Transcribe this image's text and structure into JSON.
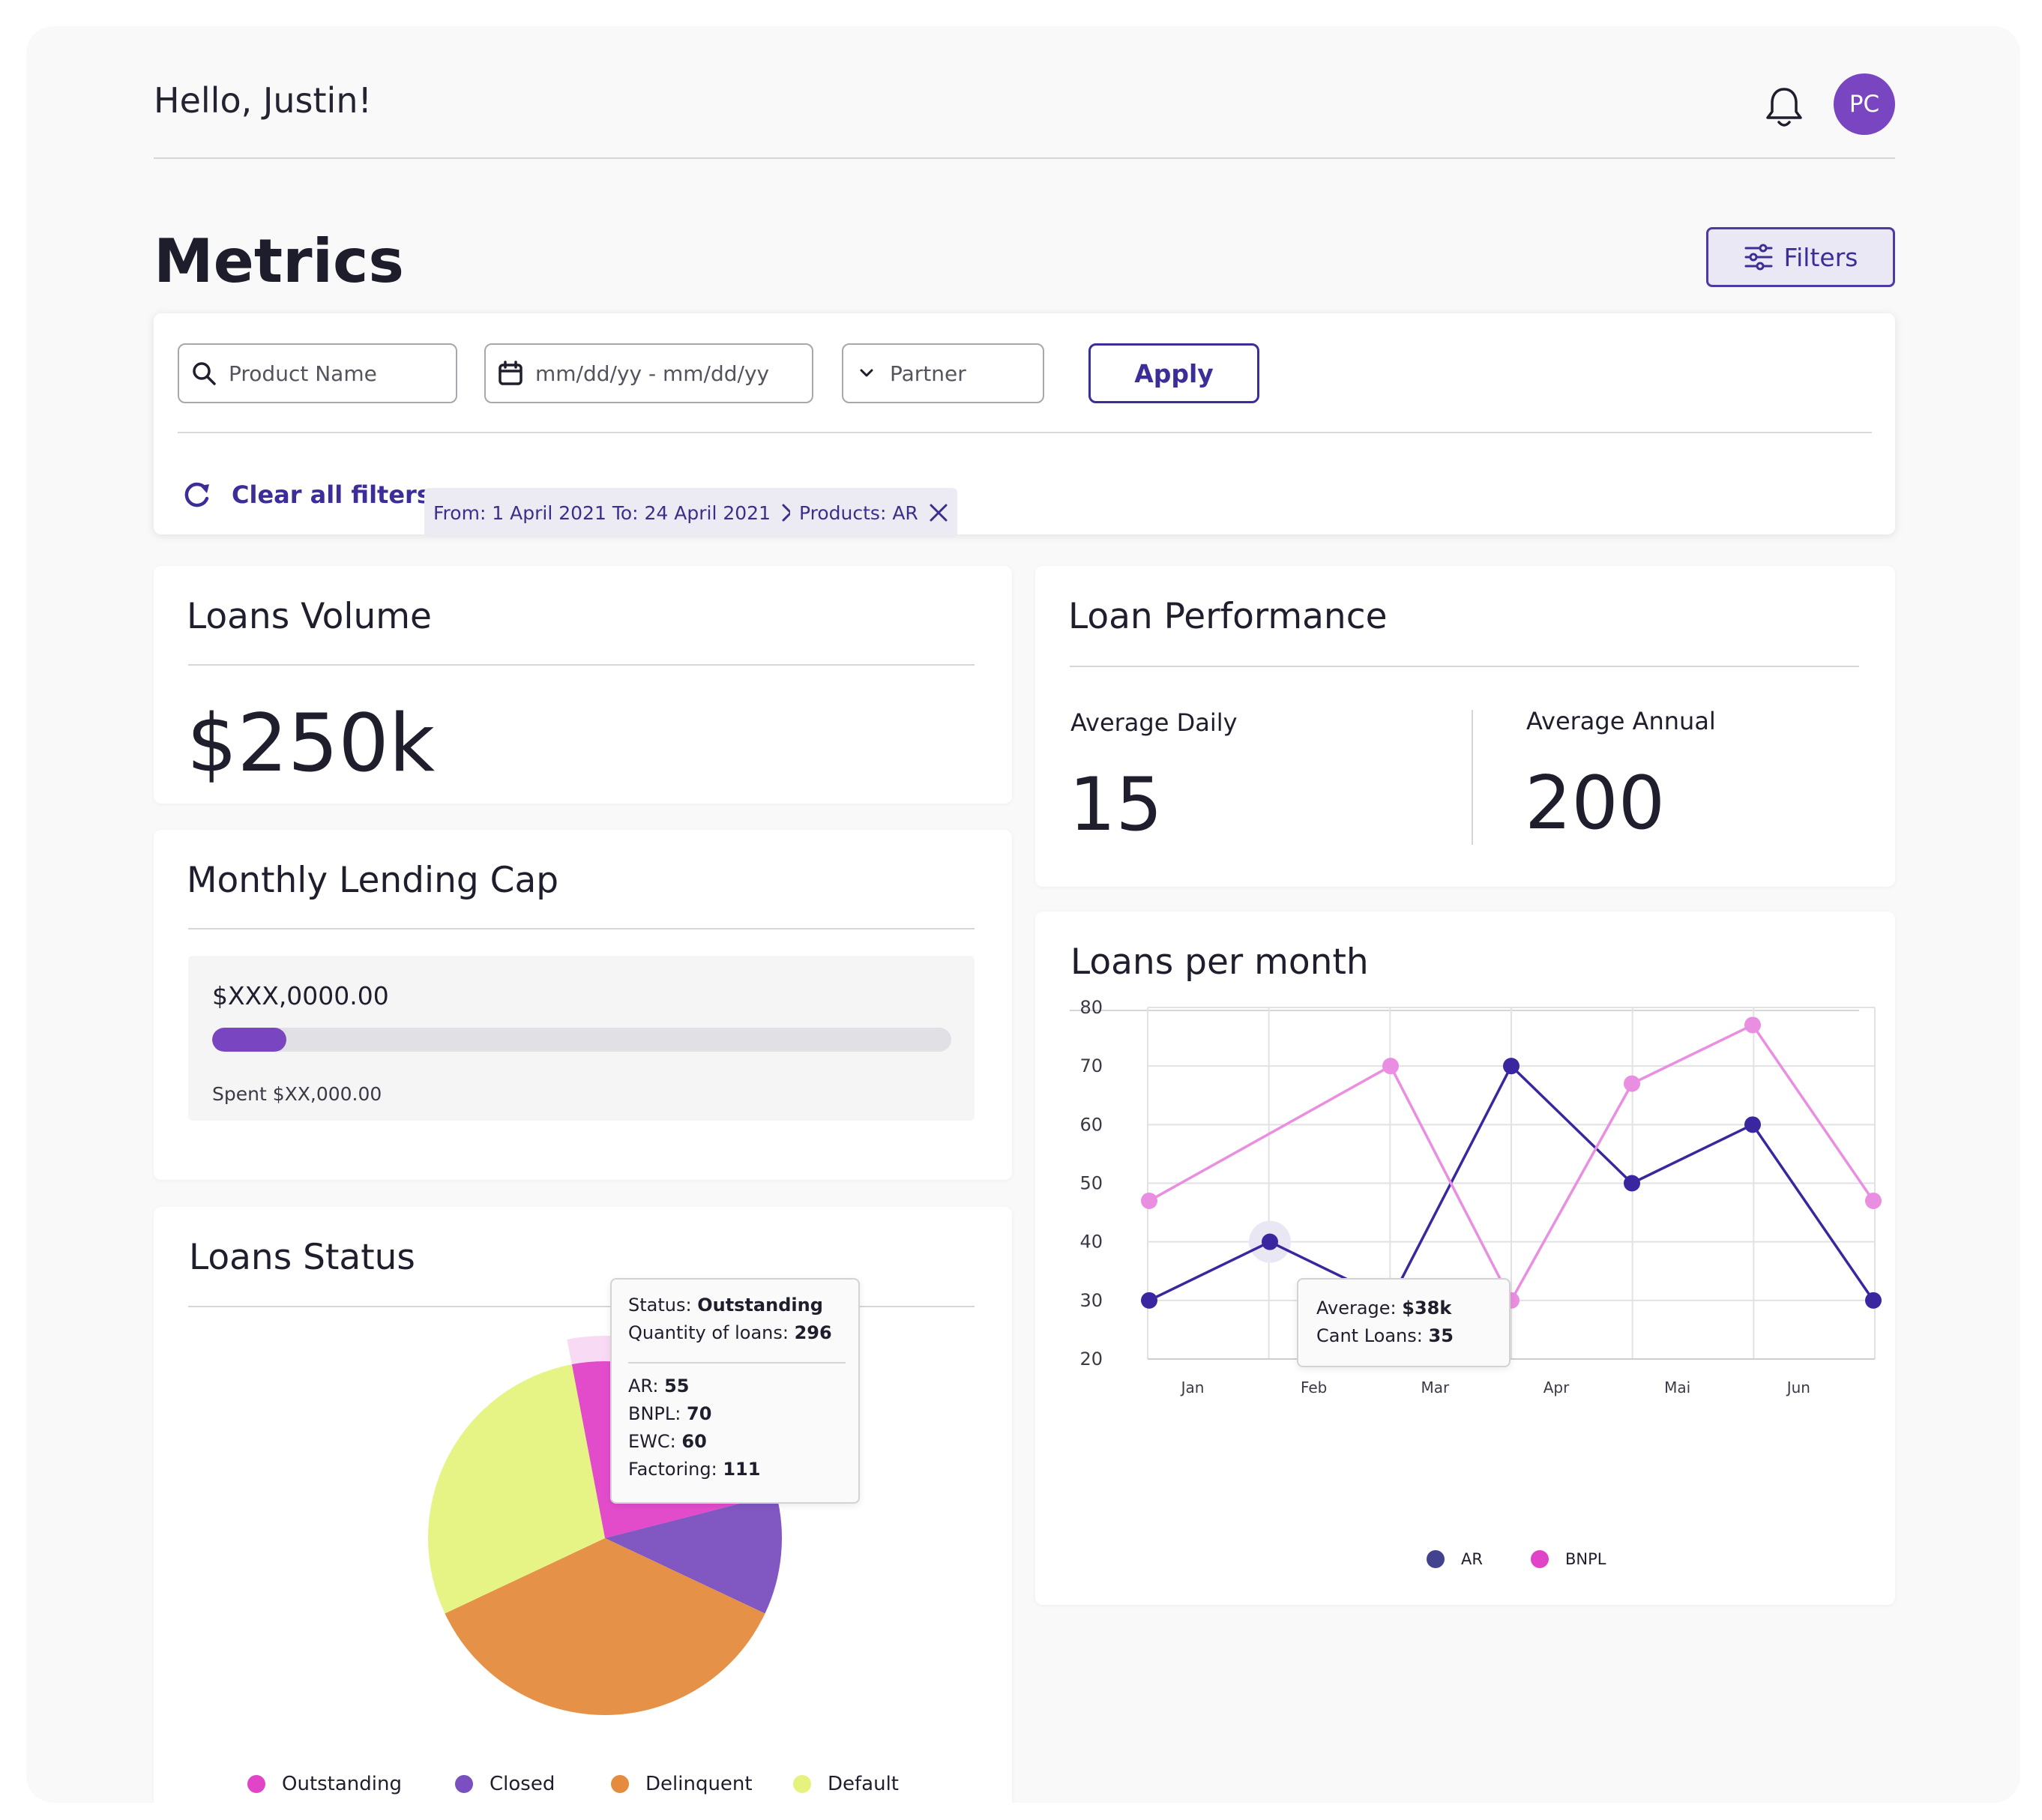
{
  "header": {
    "greeting": "Hello, Justin!",
    "avatar_initials": "PC",
    "bell_icon": "bell-icon"
  },
  "page": {
    "title": "Metrics",
    "filters_button": "Filters"
  },
  "filters": {
    "product_placeholder": "Product Name",
    "date_placeholder": "mm/dd/yy - mm/dd/yy",
    "partner_placeholder": "Partner",
    "apply_label": "Apply",
    "clear_label": "Clear all filters",
    "chips": [
      {
        "label": "From: 1 April 2021 To: 24 April 2021"
      },
      {
        "label": "Products: AR"
      }
    ]
  },
  "loans_volume": {
    "title": "Loans Volume",
    "value": "$250k"
  },
  "loan_performance": {
    "title": "Loan Performance",
    "daily_label": "Average Daily",
    "daily_value": "15",
    "annual_label": "Average Annual",
    "annual_value": "200"
  },
  "lending_cap": {
    "title": "Monthly Lending Cap",
    "amount": "$XXX,0000.00",
    "spent": "Spent $XX,000.00",
    "progress_fraction": 0.1
  },
  "loans_status": {
    "title": "Loans Status",
    "tooltip": {
      "status_label": "Status:",
      "status_value": "Outstanding",
      "quantity_label": "Quantity of loans:",
      "quantity_value": "296",
      "rows": [
        {
          "label": "AR:",
          "value": "55"
        },
        {
          "label": "BNPL:",
          "value": "70"
        },
        {
          "label": "EWC:",
          "value": "60"
        },
        {
          "label": "Factoring:",
          "value": "111"
        }
      ]
    },
    "legend": [
      {
        "label": "Outstanding",
        "color": "#e045c8"
      },
      {
        "label": "Closed",
        "color": "#7a4fbf"
      },
      {
        "label": "Delinquent",
        "color": "#e48b3e"
      },
      {
        "label": "Default",
        "color": "#e5f27e"
      }
    ]
  },
  "loans_per_month": {
    "title": "Loans per month",
    "tooltip": {
      "avg_label": "Average:",
      "avg_value": "$38k",
      "cant_label": "Cant Loans:",
      "cant_value": "35"
    },
    "legend": [
      {
        "label": "AR",
        "color": "#42438e"
      },
      {
        "label": "BNPL",
        "color": "#e045c8"
      }
    ]
  },
  "chart_data": [
    {
      "type": "pie",
      "title": "Loans Status",
      "categories": [
        "Outstanding",
        "Closed",
        "Delinquent",
        "Default"
      ],
      "values": [
        24,
        11,
        36,
        29
      ],
      "colors": [
        "#e045c8",
        "#7a4fbf",
        "#e48b3e",
        "#e5f27e"
      ],
      "highlighted": "Outstanding",
      "legend_position": "bottom"
    },
    {
      "type": "line",
      "title": "Loans per month",
      "x": [
        0,
        1,
        2,
        3,
        4,
        5,
        6
      ],
      "x_tick_labels": [
        "Jan",
        "Feb",
        "Mar",
        "Apr",
        "Mai",
        "Jun"
      ],
      "ylim": [
        20,
        80
      ],
      "yticks": [
        20,
        30,
        40,
        50,
        60,
        70,
        80
      ],
      "grid": true,
      "series": [
        {
          "name": "AR",
          "color": "#3a27a0",
          "values": [
            30,
            40,
            30,
            70,
            50,
            60,
            30
          ]
        },
        {
          "name": "BNPL",
          "color": "#e98ee0",
          "values": [
            47,
            null,
            70,
            30,
            67,
            77,
            47
          ]
        }
      ],
      "legend_position": "bottom"
    }
  ]
}
